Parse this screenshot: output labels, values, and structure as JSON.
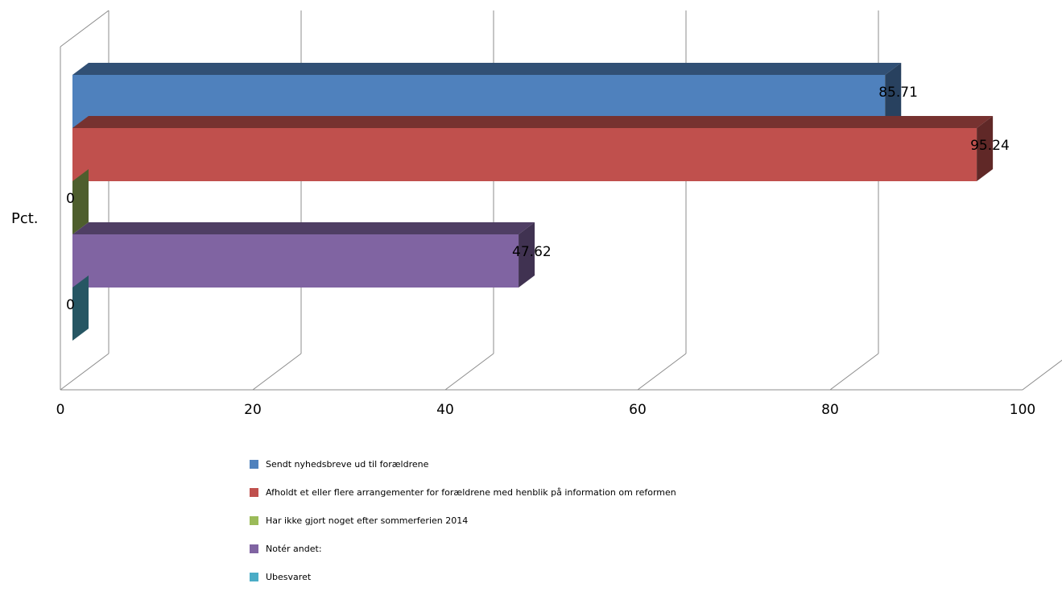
{
  "chart_data": {
    "type": "bar",
    "orientation": "horizontal",
    "three_d": true,
    "ylabel": "Pct.",
    "xlim": [
      0,
      100
    ],
    "x_ticks": [
      0,
      20,
      40,
      60,
      80,
      100
    ],
    "grid": true,
    "legend_position": "bottom",
    "categories": [
      "Pct."
    ],
    "series": [
      {
        "name": "Sendt nyhedsbreve ud til forældrene",
        "values": [
          85.71
        ],
        "label": "85.71",
        "color": "#4F81BD"
      },
      {
        "name": "Afholdt et eller flere arrangementer for forældrene med henblik på information om reformen",
        "values": [
          95.24
        ],
        "label": "95.24",
        "color": "#C0504D"
      },
      {
        "name": "Har ikke gjort noget efter sommerferien 2014",
        "values": [
          0
        ],
        "label": "0",
        "color": "#9BBB59"
      },
      {
        "name": "Notér andet:",
        "values": [
          47.62
        ],
        "label": "47.62",
        "color": "#8064A2"
      },
      {
        "name": "Ubesvaret",
        "values": [
          0
        ],
        "label": "0",
        "color": "#4BACC6"
      }
    ]
  }
}
